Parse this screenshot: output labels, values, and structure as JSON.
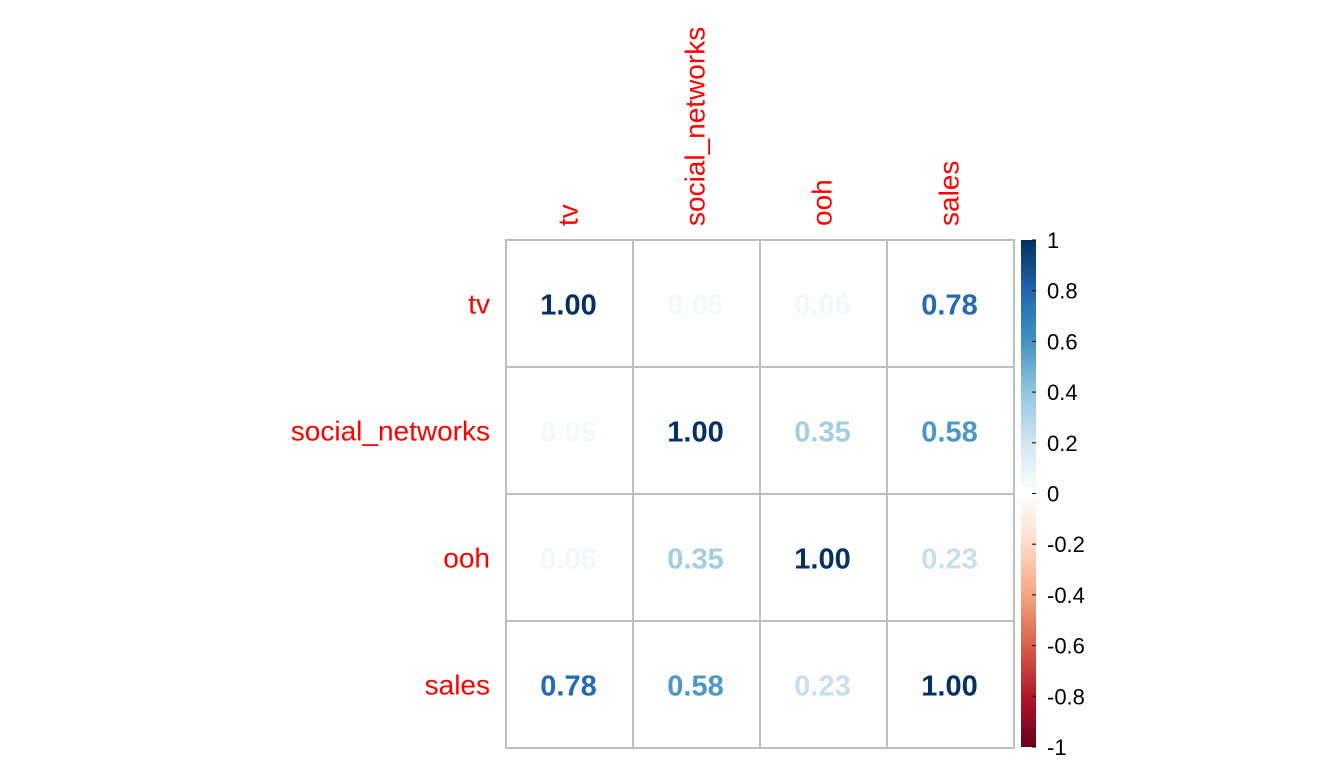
{
  "chart_data": {
    "type": "heatmap",
    "variables": [
      "tv",
      "social_networks",
      "ooh",
      "sales"
    ],
    "matrix": [
      [
        1.0,
        0.05,
        0.06,
        0.78
      ],
      [
        0.05,
        1.0,
        0.35,
        0.58
      ],
      [
        0.06,
        0.35,
        1.0,
        0.23
      ],
      [
        0.78,
        0.58,
        0.23,
        1.0
      ]
    ],
    "cell_labels": [
      [
        "1.00",
        "0.05",
        "0.06",
        "0.78"
      ],
      [
        "0.05",
        "1.00",
        "0.35",
        "0.58"
      ],
      [
        "0.06",
        "0.35",
        "1.00",
        "0.23"
      ],
      [
        "0.78",
        "0.58",
        "0.23",
        "1.00"
      ]
    ],
    "color_scale": {
      "range": [
        -1,
        1
      ],
      "tick_labels": [
        "1",
        "0.8",
        "0.6",
        "0.4",
        "0.2",
        "0",
        "-0.2",
        "-0.4",
        "-0.6",
        "-0.8",
        "-1"
      ],
      "tick_values": [
        1,
        0.8,
        0.6,
        0.4,
        0.2,
        0,
        -0.2,
        -0.4,
        -0.6,
        -0.8,
        -1
      ],
      "colors": [
        "#67001F",
        "#B2182B",
        "#D6604D",
        "#F4A582",
        "#FDDBC7",
        "#FFFFFF",
        "#D1E5F0",
        "#92C5DE",
        "#4393C3",
        "#2166AC",
        "#053061"
      ]
    },
    "label_color": "#FF0000",
    "grid_color": "#BEBEBE",
    "legend_position": "right"
  }
}
